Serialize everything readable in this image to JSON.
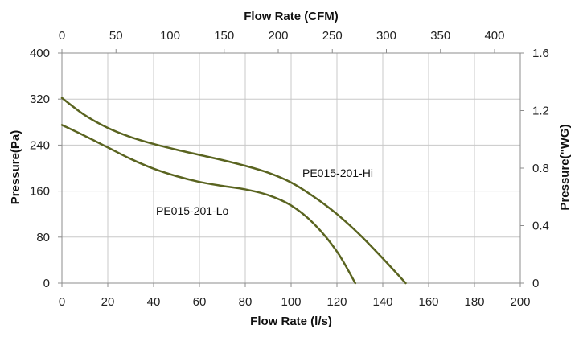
{
  "chart_data": {
    "type": "line",
    "colors": {
      "series": "#5a6420",
      "grid": "#c8c8c8",
      "axis": "#8c8c8c"
    },
    "grid": true,
    "xlabel": "Flow Rate (l/s)",
    "ylabel": "Pressure(Pa)",
    "xlim": [
      0,
      200
    ],
    "ylim": [
      0,
      400
    ],
    "x_ticks": [
      "0",
      "20",
      "40",
      "60",
      "80",
      "100",
      "120",
      "140",
      "160",
      "180",
      "200"
    ],
    "y_ticks": [
      "0",
      "80",
      "160",
      "240",
      "320",
      "400"
    ],
    "secondary_x": {
      "label": "Flow Rate (CFM)",
      "range": [
        0,
        423.8
      ],
      "ticks": [
        "0",
        "50",
        "100",
        "150",
        "200",
        "250",
        "300",
        "350",
        "400"
      ]
    },
    "secondary_y": {
      "label": "Pressure(\"WG)",
      "range": [
        0,
        1.6
      ],
      "ticks": [
        "0",
        "0.4",
        "0.8",
        "1.2",
        "1.6"
      ]
    },
    "series": [
      {
        "name": "PE015-201-Hi",
        "x": [
          0,
          10,
          20,
          30,
          40,
          50,
          60,
          70,
          80,
          90,
          100,
          110,
          120,
          130,
          140,
          150
        ],
        "y": [
          322,
          292,
          270,
          254,
          242,
          232,
          223,
          214,
          204,
          192,
          175,
          150,
          120,
          84,
          43,
          0
        ]
      },
      {
        "name": "PE015-201-Lo",
        "x": [
          0,
          10,
          20,
          30,
          40,
          50,
          60,
          70,
          80,
          90,
          100,
          110,
          120,
          128
        ],
        "y": [
          275,
          256,
          236,
          216,
          199,
          186,
          176,
          169,
          163,
          153,
          135,
          103,
          55,
          0
        ]
      }
    ]
  }
}
